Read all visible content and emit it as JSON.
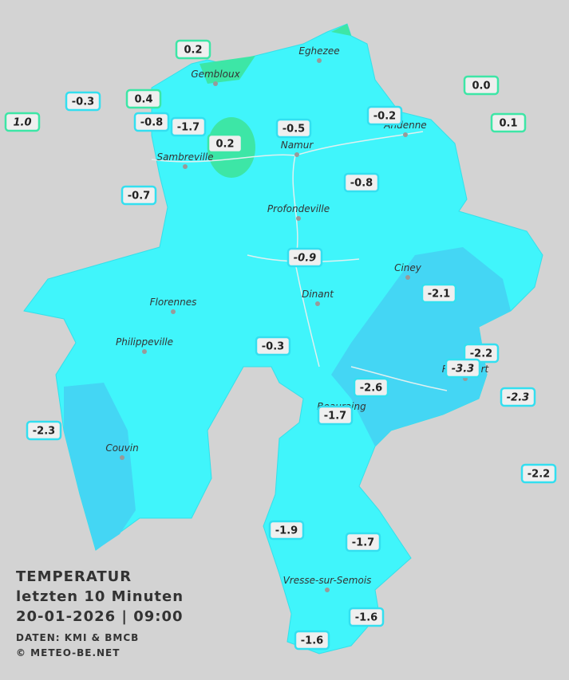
{
  "title": {
    "line1": "TEMPERATUR",
    "line2": "letzten 10 Minuten",
    "line3": "20-01-2026  |  09:00",
    "source": "DATEN: KMI & BMCB",
    "copyright": "© METEO-BE.NET"
  },
  "places": [
    "Eghezee",
    "Gembloux",
    "Andenne",
    "Namur",
    "Sambreville",
    "Profondeville",
    "Ciney",
    "Dinant",
    "Florennes",
    "Philippeville",
    "Beauraing",
    "Rochefort",
    "Couvin",
    "Vresse-sur-Semois"
  ],
  "readings": [
    "0.2",
    "0.4",
    "-0.3",
    "1.0",
    "-0.8",
    "-1.7",
    "0.2",
    "-0.5",
    "-0.2",
    "0.0",
    "0.1",
    "-0.7",
    "-0.8",
    "-0.9",
    "-2.1",
    "-0.3",
    "-2.2",
    "-3.3",
    "-2.6",
    "-2.3",
    "-1.7",
    "-2.3",
    "-2.2",
    "-1.9",
    "-1.7",
    "-1.6",
    "-1.6"
  ]
}
